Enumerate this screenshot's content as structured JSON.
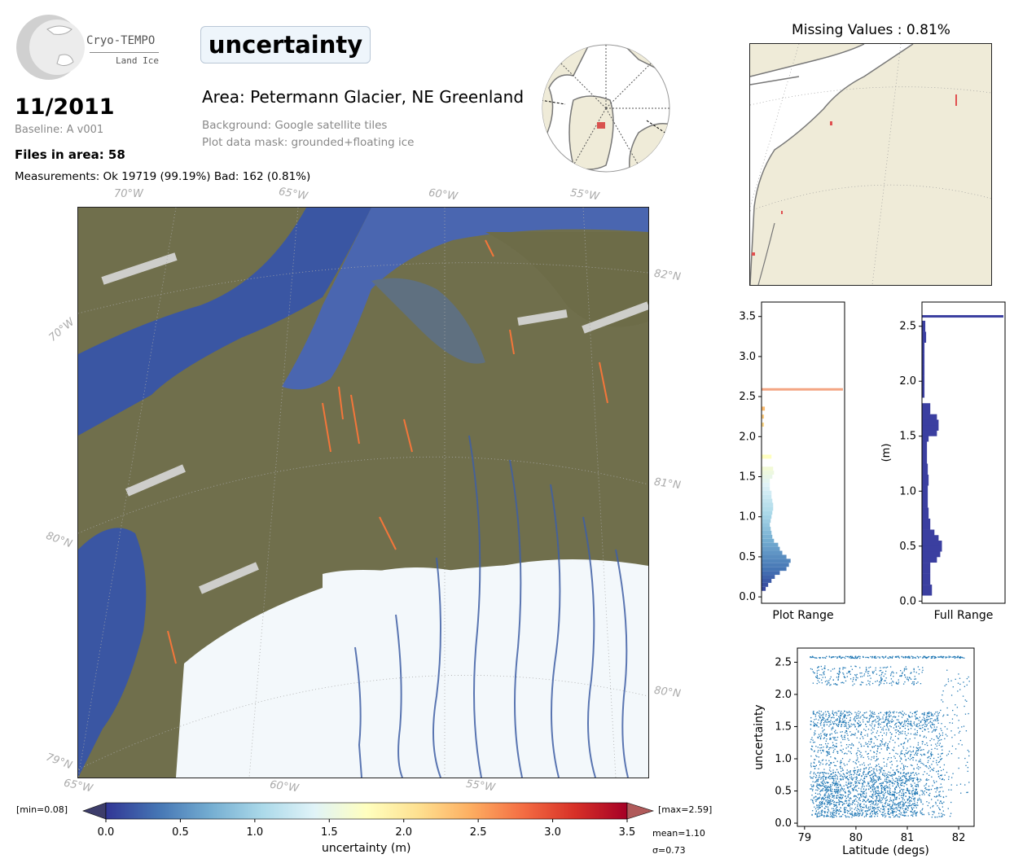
{
  "header": {
    "logo_line1": "Cryo-TEMPO",
    "logo_line2": "Land Ice",
    "title": "uncertainty",
    "date": "11/2011",
    "baseline": "Baseline: A v001",
    "files": "Files in area: 58",
    "measurements": "Measurements: Ok 19719 (99.19%) Bad: 162 (0.81%)",
    "area": "Area: Petermann Glacier, NE Greenland",
    "background": "Background: Google satellite tiles",
    "mask": "Plot data mask: grounded+floating ice"
  },
  "map": {
    "lon_labels_top": [
      "70°W",
      "65°W",
      "60°W",
      "55°W"
    ],
    "lon_labels_bottom": [
      "65°W",
      "60°W",
      "55°W"
    ],
    "lat_labels_right": [
      "82°N",
      "81°N",
      "80°N"
    ],
    "lat_labels_left": [
      "70°W",
      "80°N",
      "79°N"
    ]
  },
  "missing": {
    "title": "Missing Values : 0.81%"
  },
  "colorbar": {
    "min_label": "[min=0.08]",
    "max_label": "[max=2.59]",
    "ticks": [
      "0.0",
      "0.5",
      "1.0",
      "1.5",
      "2.0",
      "2.5",
      "3.0",
      "3.5"
    ],
    "label": "uncertainty (m)",
    "mean": "mean=1.10",
    "sigma": "σ=0.73",
    "cmap": [
      "#313695",
      "#4575b4",
      "#74add1",
      "#abd9e9",
      "#e0f3f8",
      "#ffffbf",
      "#fee090",
      "#fdae61",
      "#f46d43",
      "#d73027",
      "#a50026"
    ]
  },
  "chart_data": [
    {
      "type": "bar",
      "orientation": "horizontal",
      "xlabel": "Plot Range",
      "ylim": [
        -0.08,
        3.68
      ],
      "yticks": [
        "0.0",
        "0.5",
        "1.0",
        "1.5",
        "2.0",
        "2.5",
        "3.0",
        "3.5"
      ],
      "bins": [
        {
          "y": 0.1,
          "v": 0.05
        },
        {
          "y": 0.15,
          "v": 0.08
        },
        {
          "y": 0.2,
          "v": 0.12
        },
        {
          "y": 0.25,
          "v": 0.16
        },
        {
          "y": 0.3,
          "v": 0.22
        },
        {
          "y": 0.35,
          "v": 0.3
        },
        {
          "y": 0.4,
          "v": 0.33
        },
        {
          "y": 0.45,
          "v": 0.35
        },
        {
          "y": 0.5,
          "v": 0.3
        },
        {
          "y": 0.55,
          "v": 0.25
        },
        {
          "y": 0.6,
          "v": 0.22
        },
        {
          "y": 0.65,
          "v": 0.2
        },
        {
          "y": 0.7,
          "v": 0.15
        },
        {
          "y": 0.75,
          "v": 0.13
        },
        {
          "y": 0.8,
          "v": 0.12
        },
        {
          "y": 0.85,
          "v": 0.11
        },
        {
          "y": 0.9,
          "v": 0.1
        },
        {
          "y": 0.95,
          "v": 0.11
        },
        {
          "y": 1.0,
          "v": 0.12
        },
        {
          "y": 1.05,
          "v": 0.13
        },
        {
          "y": 1.1,
          "v": 0.14
        },
        {
          "y": 1.15,
          "v": 0.14
        },
        {
          "y": 1.2,
          "v": 0.13
        },
        {
          "y": 1.25,
          "v": 0.12
        },
        {
          "y": 1.3,
          "v": 0.12
        },
        {
          "y": 1.35,
          "v": 0.1
        },
        {
          "y": 1.4,
          "v": 0.1
        },
        {
          "y": 1.45,
          "v": 0.1
        },
        {
          "y": 1.5,
          "v": 0.13
        },
        {
          "y": 1.55,
          "v": 0.15
        },
        {
          "y": 1.6,
          "v": 0.14
        },
        {
          "y": 1.75,
          "v": 0.12
        },
        {
          "y": 2.15,
          "v": 0.03
        },
        {
          "y": 2.25,
          "v": 0.03
        },
        {
          "y": 2.35,
          "v": 0.04
        },
        {
          "y": 2.59,
          "v": 0.98
        }
      ]
    },
    {
      "type": "bar",
      "orientation": "horizontal",
      "xlabel": "Full Range",
      "ylabel": "(m)",
      "ylim": [
        -0.02,
        2.72
      ],
      "yticks": [
        "0.0",
        "0.5",
        "1.0",
        "1.5",
        "2.0",
        "2.5"
      ],
      "bins": [
        {
          "y": 0.1,
          "v": 0.12
        },
        {
          "y": 0.2,
          "v": 0.1
        },
        {
          "y": 0.3,
          "v": 0.1
        },
        {
          "y": 0.4,
          "v": 0.18
        },
        {
          "y": 0.45,
          "v": 0.22
        },
        {
          "y": 0.5,
          "v": 0.24
        },
        {
          "y": 0.55,
          "v": 0.2
        },
        {
          "y": 0.6,
          "v": 0.15
        },
        {
          "y": 0.7,
          "v": 0.1
        },
        {
          "y": 0.8,
          "v": 0.08
        },
        {
          "y": 0.9,
          "v": 0.07
        },
        {
          "y": 1.0,
          "v": 0.07
        },
        {
          "y": 1.1,
          "v": 0.08
        },
        {
          "y": 1.2,
          "v": 0.07
        },
        {
          "y": 1.3,
          "v": 0.06
        },
        {
          "y": 1.4,
          "v": 0.06
        },
        {
          "y": 1.5,
          "v": 0.08
        },
        {
          "y": 1.55,
          "v": 0.18
        },
        {
          "y": 1.6,
          "v": 0.2
        },
        {
          "y": 1.65,
          "v": 0.18
        },
        {
          "y": 1.7,
          "v": 0.09
        },
        {
          "y": 1.75,
          "v": 0.1
        },
        {
          "y": 1.9,
          "v": 0.03
        },
        {
          "y": 2.0,
          "v": 0.03
        },
        {
          "y": 2.1,
          "v": 0.03
        },
        {
          "y": 2.2,
          "v": 0.03
        },
        {
          "y": 2.3,
          "v": 0.03
        },
        {
          "y": 2.4,
          "v": 0.05
        },
        {
          "y": 2.5,
          "v": 0.04
        },
        {
          "y": 2.59,
          "v": 0.98
        }
      ]
    },
    {
      "type": "scatter",
      "xlabel": "Latitude (degs)",
      "ylabel": "uncertainty",
      "xlim": [
        78.86,
        82.3
      ],
      "ylim": [
        -0.05,
        2.72
      ],
      "xticks": [
        "79",
        "80",
        "81",
        "82"
      ],
      "yticks": [
        "0.0",
        "0.5",
        "1.0",
        "1.5",
        "2.0",
        "2.5"
      ],
      "color": "#1f77b4",
      "clusters": [
        {
          "x": [
            79.1,
            81.7
          ],
          "y": [
            0.1,
            1.5
          ],
          "n": 1400
        },
        {
          "x": [
            79.2,
            81.2
          ],
          "y": [
            0.1,
            0.8
          ],
          "n": 900
        },
        {
          "x": [
            79.1,
            81.6
          ],
          "y": [
            1.5,
            1.75
          ],
          "n": 500
        },
        {
          "x": [
            79.1,
            81.3
          ],
          "y": [
            2.15,
            2.45
          ],
          "n": 250
        },
        {
          "x": [
            79.1,
            82.1
          ],
          "y": [
            2.57,
            2.6
          ],
          "n": 220
        },
        {
          "x": [
            81.6,
            82.2
          ],
          "y": [
            0.1,
            2.4
          ],
          "n": 120
        }
      ]
    }
  ]
}
